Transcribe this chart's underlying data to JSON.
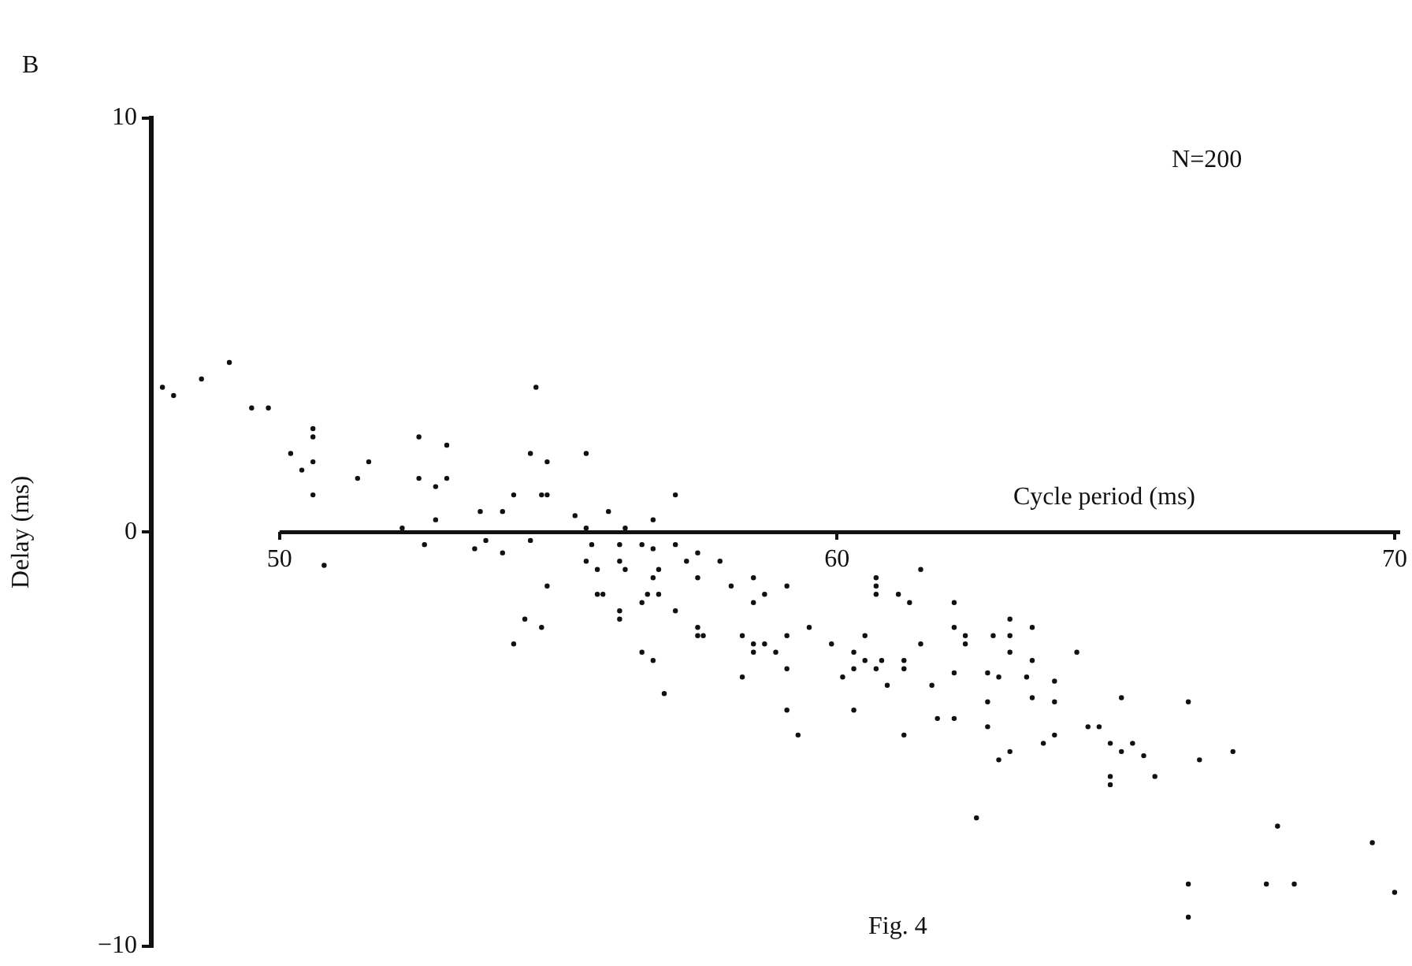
{
  "chart_data": {
    "type": "scatter",
    "xlabel": "Cycle period (ms)",
    "ylabel": "Delay (ms)",
    "annotations": [
      "B",
      "N=200",
      "Fig. 4"
    ],
    "xlim": [
      47.7,
      70.1
    ],
    "ylim": [
      -10,
      10
    ],
    "xticks": [
      50,
      60,
      70
    ],
    "yticks": [
      -10,
      0,
      10
    ],
    "grid": false,
    "legend": false,
    "marker": "circle",
    "series": [
      {
        "color": "#111111",
        "x": [
          47.9,
          48.1,
          48.6,
          49.1,
          49.5,
          49.8,
          50.6,
          50.6,
          50.2,
          50.4,
          50.6,
          50.6,
          51.4,
          51.6,
          52.5,
          52.5,
          52.8,
          53.0,
          53.0,
          52.8,
          52.6,
          50.8,
          53.6,
          54.0,
          54.2,
          54.5,
          54.6,
          54.8,
          54.7,
          54.8,
          53.5,
          53.7,
          54.0,
          54.5,
          54.8,
          54.4,
          54.7,
          54.2,
          52.2,
          55.5,
          55.3,
          55.9,
          55.5,
          56.2,
          56.7,
          57.1,
          55.6,
          56.1,
          56.5,
          57.1,
          55.5,
          55.7,
          56.1,
          56.2,
          56.7,
          57.3,
          57.5,
          57.9,
          56.7,
          56.8,
          57.5,
          55.7,
          55.8,
          56.6,
          56.8,
          56.5,
          58.1,
          58.5,
          59.1,
          58.7,
          58.5,
          56.1,
          56.1,
          57.1,
          60.7,
          60.7,
          60.7,
          57.5,
          57.5,
          57.6,
          58.3,
          58.5,
          58.7,
          59.1,
          59.5,
          59.9,
          60.5,
          56.5,
          58.5,
          58.9,
          60.3,
          56.7,
          56.9,
          58.3,
          59.1,
          59.1,
          59.3,
          60.1,
          60.3,
          60.3,
          60.7,
          60.8,
          60.9,
          60.5,
          61.5,
          61.1,
          61.3,
          62.1,
          62.1,
          62.3,
          62.3,
          61.5,
          61.2,
          61.2,
          61.7,
          62.1,
          62.7,
          62.9,
          62.7,
          62.8,
          63.1,
          63.1,
          63.1,
          63.5,
          63.5,
          63.4,
          63.5,
          63.9,
          63.9,
          64.3,
          65.1,
          61.2,
          61.8,
          62.1,
          62.7,
          62.9,
          63.1,
          63.7,
          63.9,
          64.5,
          64.7,
          64.9,
          65.1,
          65.3,
          65.5,
          64.9,
          64.9,
          65.7,
          62.5,
          66.3,
          66.5,
          67.1,
          67.9,
          69.6,
          66.3,
          67.7,
          68.2,
          70.0,
          66.3
        ],
        "values": [
          3.5,
          3.3,
          3.7,
          4.1,
          3.0,
          3.0,
          2.5,
          2.3,
          1.9,
          1.5,
          1.7,
          0.9,
          1.3,
          1.7,
          2.3,
          1.3,
          1.1,
          2.1,
          1.3,
          0.3,
          -0.3,
          -0.8,
          0.5,
          0.5,
          0.9,
          1.9,
          3.5,
          1.7,
          0.9,
          0.9,
          -0.4,
          -0.2,
          -0.5,
          -0.2,
          -1.3,
          -2.1,
          -2.3,
          -2.7,
          0.1,
          1.9,
          0.4,
          0.5,
          0.1,
          0.1,
          0.3,
          0.9,
          -0.3,
          -0.3,
          -0.3,
          -0.3,
          -0.7,
          -0.9,
          -0.7,
          -0.9,
          -0.4,
          -0.7,
          -0.5,
          -0.7,
          -1.1,
          -0.9,
          -1.1,
          -1.5,
          -1.5,
          -1.5,
          -1.5,
          -1.7,
          -1.3,
          -1.1,
          -1.3,
          -1.5,
          -1.7,
          -1.9,
          -2.1,
          -1.9,
          -1.1,
          -1.3,
          -1.5,
          -2.3,
          -2.5,
          -2.5,
          -2.5,
          -2.7,
          -2.7,
          -2.5,
          -2.3,
          -2.7,
          -2.5,
          -2.9,
          -2.9,
          -2.9,
          -2.9,
          -3.1,
          -3.9,
          -3.5,
          -3.3,
          -4.3,
          -4.9,
          -3.5,
          -3.3,
          -4.3,
          -3.3,
          -3.1,
          -3.7,
          -3.1,
          -0.9,
          -1.5,
          -1.7,
          -1.7,
          -2.3,
          -2.5,
          -2.7,
          -2.7,
          -3.1,
          -3.3,
          -3.7,
          -3.4,
          -3.4,
          -3.5,
          -4.1,
          -2.5,
          -2.5,
          -2.1,
          -2.9,
          -2.3,
          -3.1,
          -3.5,
          -4.0,
          -3.6,
          -4.1,
          -2.9,
          -4.0,
          -4.9,
          -4.5,
          -4.5,
          -4.7,
          -5.5,
          -5.3,
          -5.1,
          -4.9,
          -4.7,
          -4.7,
          -5.1,
          -5.3,
          -5.1,
          -5.4,
          -5.9,
          -6.1,
          -5.9,
          -6.9,
          -4.1,
          -5.5,
          -5.3,
          -7.1,
          -7.5,
          -8.5,
          -8.5,
          -8.5,
          -8.7,
          -9.3
        ]
      }
    ]
  }
}
